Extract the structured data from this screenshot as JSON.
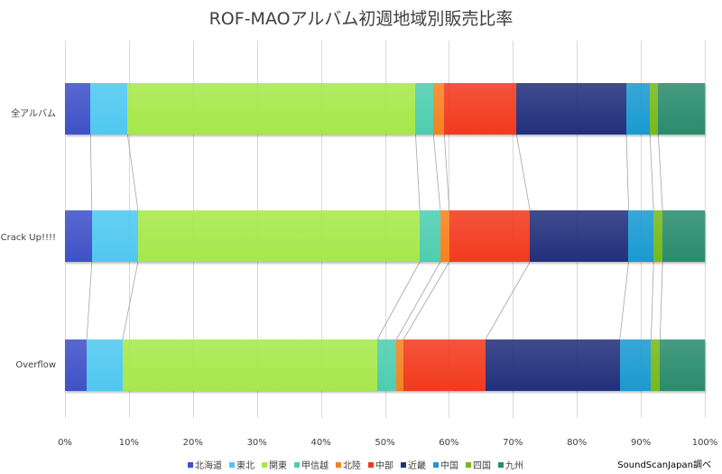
{
  "chart_data": {
    "type": "bar",
    "orientation": "horizontal",
    "stacked": "percent",
    "title": "ROF-MAOアルバム初週地域別販売比率",
    "xlabel": "",
    "ylabel": "",
    "xlim": [
      0,
      100
    ],
    "x_ticks": [
      "0%",
      "10%",
      "20%",
      "30%",
      "40%",
      "50%",
      "60%",
      "70%",
      "80%",
      "90%",
      "100%"
    ],
    "grid": true,
    "legend_position": "bottom",
    "categories": [
      "全アルバム",
      "Crack Up!!!!",
      "Overflow"
    ],
    "series": [
      {
        "name": "北海道",
        "color": "#3f51c8",
        "values": [
          4.0,
          4.2,
          3.4
        ]
      },
      {
        "name": "東北",
        "color": "#4fc8f0",
        "values": [
          5.8,
          7.2,
          5.6
        ]
      },
      {
        "name": "関東",
        "color": "#a6e84a",
        "values": [
          45.1,
          44.0,
          39.8
        ]
      },
      {
        "name": "甲信越",
        "color": "#4ecdb0",
        "values": [
          2.8,
          3.2,
          3.0
        ]
      },
      {
        "name": "北陸",
        "color": "#f5821f",
        "values": [
          1.7,
          1.4,
          1.1
        ]
      },
      {
        "name": "中部",
        "color": "#f23a1e",
        "values": [
          11.3,
          12.6,
          12.8
        ]
      },
      {
        "name": "近畿",
        "color": "#22307c",
        "values": [
          17.2,
          15.4,
          21.0
        ]
      },
      {
        "name": "中国",
        "color": "#1a9ad0",
        "values": [
          3.7,
          3.9,
          4.9
        ]
      },
      {
        "name": "四国",
        "color": "#77b81c",
        "values": [
          1.3,
          1.4,
          1.4
        ]
      },
      {
        "name": "九州",
        "color": "#2a8c6c",
        "values": [
          7.3,
          6.6,
          7.0
        ]
      }
    ],
    "annotations": [
      "SoundScanJapan調べ"
    ]
  },
  "title": "ROF-MAOアルバム初週地域別販売比率",
  "source": "SoundScanJapan調べ",
  "categories": [
    "全アルバム",
    "Crack Up!!!!",
    "Overflow"
  ],
  "ticks": [
    "0%",
    "10%",
    "20%",
    "30%",
    "40%",
    "50%",
    "60%",
    "70%",
    "80%",
    "90%",
    "100%"
  ],
  "legend": [
    "北海道",
    "東北",
    "関東",
    "甲信越",
    "北陸",
    "中部",
    "近畿",
    "中国",
    "四国",
    "九州"
  ]
}
